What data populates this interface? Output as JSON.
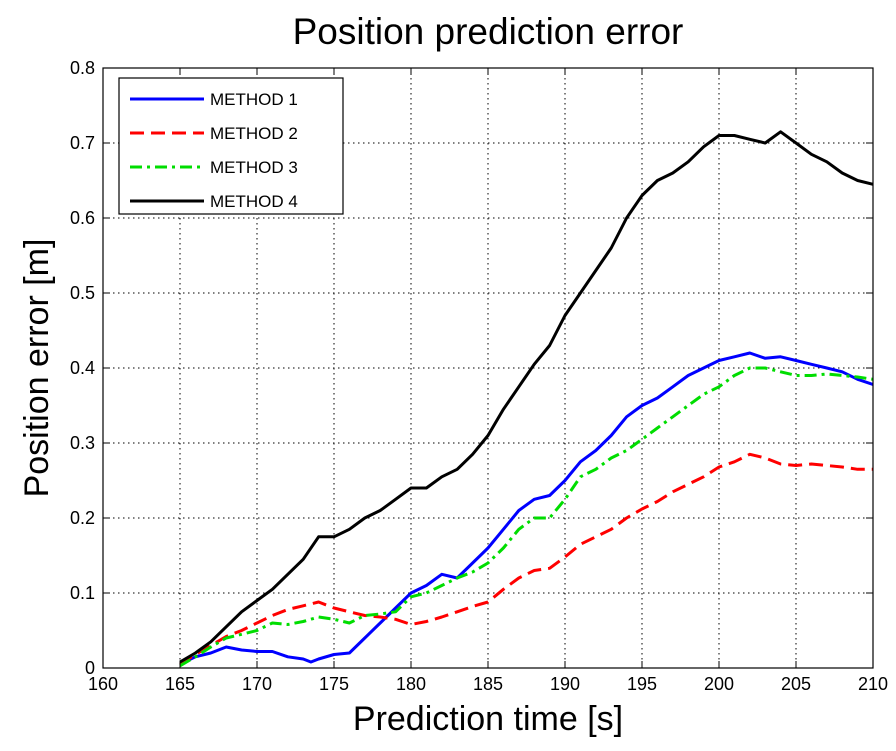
{
  "chart_data": {
    "type": "line",
    "title": "Position prediction error",
    "xlabel": "Prediction time [s]",
    "ylabel": "Position error [m]",
    "xlim": [
      160,
      210
    ],
    "ylim": [
      0,
      0.8
    ],
    "xticks": [
      "160",
      "165",
      "170",
      "175",
      "180",
      "185",
      "190",
      "195",
      "200",
      "205",
      "210"
    ],
    "yticks": [
      "0",
      "0.1",
      "0.2",
      "0.3",
      "0.4",
      "0.5",
      "0.6",
      "0.7",
      "0.8"
    ],
    "grid": true,
    "legend_position": "top-left",
    "series": [
      {
        "name": "METHOD 1",
        "color": "#0000ff",
        "dash": "solid",
        "x": [
          165,
          166,
          167,
          168,
          169,
          170,
          171,
          172,
          173,
          173.5,
          174,
          175,
          176,
          177,
          178,
          179,
          180,
          181,
          182,
          183,
          184,
          185,
          186,
          187,
          188,
          189,
          190,
          191,
          192,
          193,
          194,
          195,
          196,
          197,
          198,
          199,
          200,
          201,
          202,
          203,
          204,
          205,
          206,
          207,
          208,
          209,
          210
        ],
        "y": [
          0.005,
          0.015,
          0.02,
          0.028,
          0.024,
          0.022,
          0.022,
          0.015,
          0.012,
          0.008,
          0.012,
          0.018,
          0.02,
          0.04,
          0.06,
          0.08,
          0.1,
          0.11,
          0.125,
          0.12,
          0.14,
          0.16,
          0.185,
          0.21,
          0.225,
          0.23,
          0.25,
          0.275,
          0.29,
          0.31,
          0.335,
          0.35,
          0.36,
          0.375,
          0.39,
          0.4,
          0.41,
          0.415,
          0.42,
          0.413,
          0.415,
          0.41,
          0.405,
          0.4,
          0.395,
          0.385,
          0.378
        ]
      },
      {
        "name": "METHOD 2",
        "color": "#ff0000",
        "dash": "dashed",
        "x": [
          165,
          166,
          167,
          168,
          169,
          170,
          171,
          172,
          173,
          174,
          175,
          176,
          177,
          178,
          179,
          180,
          181,
          182,
          183,
          184,
          185,
          186,
          187,
          188,
          189,
          190,
          191,
          192,
          193,
          194,
          195,
          196,
          197,
          198,
          199,
          200,
          201,
          202,
          203,
          204,
          205,
          206,
          207,
          208,
          209,
          210
        ],
        "y": [
          0.005,
          0.018,
          0.03,
          0.042,
          0.05,
          0.06,
          0.07,
          0.078,
          0.083,
          0.088,
          0.08,
          0.075,
          0.07,
          0.068,
          0.065,
          0.058,
          0.062,
          0.068,
          0.075,
          0.082,
          0.088,
          0.105,
          0.12,
          0.13,
          0.133,
          0.148,
          0.165,
          0.175,
          0.185,
          0.2,
          0.212,
          0.222,
          0.235,
          0.245,
          0.255,
          0.268,
          0.275,
          0.285,
          0.28,
          0.272,
          0.27,
          0.272,
          0.27,
          0.268,
          0.265,
          0.265
        ]
      },
      {
        "name": "METHOD 3",
        "color": "#00dd00",
        "dash": "dashdot",
        "x": [
          165,
          166,
          167,
          168,
          169,
          170,
          171,
          172,
          173,
          174,
          175,
          176,
          177,
          178,
          179,
          180,
          181,
          182,
          183,
          184,
          185,
          186,
          187,
          188,
          189,
          190,
          191,
          192,
          193,
          194,
          195,
          196,
          197,
          198,
          199,
          200,
          201,
          202,
          203,
          204,
          205,
          206,
          207,
          208,
          209,
          210
        ],
        "y": [
          0.003,
          0.015,
          0.028,
          0.04,
          0.045,
          0.05,
          0.06,
          0.058,
          0.062,
          0.068,
          0.065,
          0.06,
          0.07,
          0.072,
          0.075,
          0.095,
          0.1,
          0.11,
          0.12,
          0.128,
          0.14,
          0.16,
          0.185,
          0.2,
          0.2,
          0.225,
          0.255,
          0.265,
          0.28,
          0.29,
          0.305,
          0.32,
          0.335,
          0.35,
          0.365,
          0.375,
          0.39,
          0.4,
          0.4,
          0.395,
          0.39,
          0.39,
          0.392,
          0.39,
          0.388,
          0.385
        ]
      },
      {
        "name": "METHOD 4",
        "color": "#000000",
        "dash": "solid",
        "x": [
          165,
          166,
          167,
          168,
          169,
          170,
          171,
          172,
          173,
          174,
          175,
          176,
          177,
          178,
          179,
          180,
          181,
          182,
          183,
          184,
          185,
          186,
          187,
          188,
          189,
          190,
          191,
          192,
          193,
          194,
          195,
          196,
          197,
          198,
          199,
          200,
          201,
          202,
          203,
          204,
          205,
          206,
          207,
          208,
          209,
          210
        ],
        "y": [
          0.008,
          0.02,
          0.035,
          0.055,
          0.075,
          0.09,
          0.105,
          0.125,
          0.145,
          0.175,
          0.175,
          0.185,
          0.2,
          0.21,
          0.225,
          0.24,
          0.24,
          0.255,
          0.265,
          0.285,
          0.31,
          0.345,
          0.375,
          0.405,
          0.43,
          0.47,
          0.5,
          0.53,
          0.56,
          0.6,
          0.63,
          0.65,
          0.66,
          0.675,
          0.695,
          0.71,
          0.71,
          0.705,
          0.7,
          0.715,
          0.7,
          0.685,
          0.675,
          0.66,
          0.65,
          0.645
        ]
      }
    ]
  }
}
